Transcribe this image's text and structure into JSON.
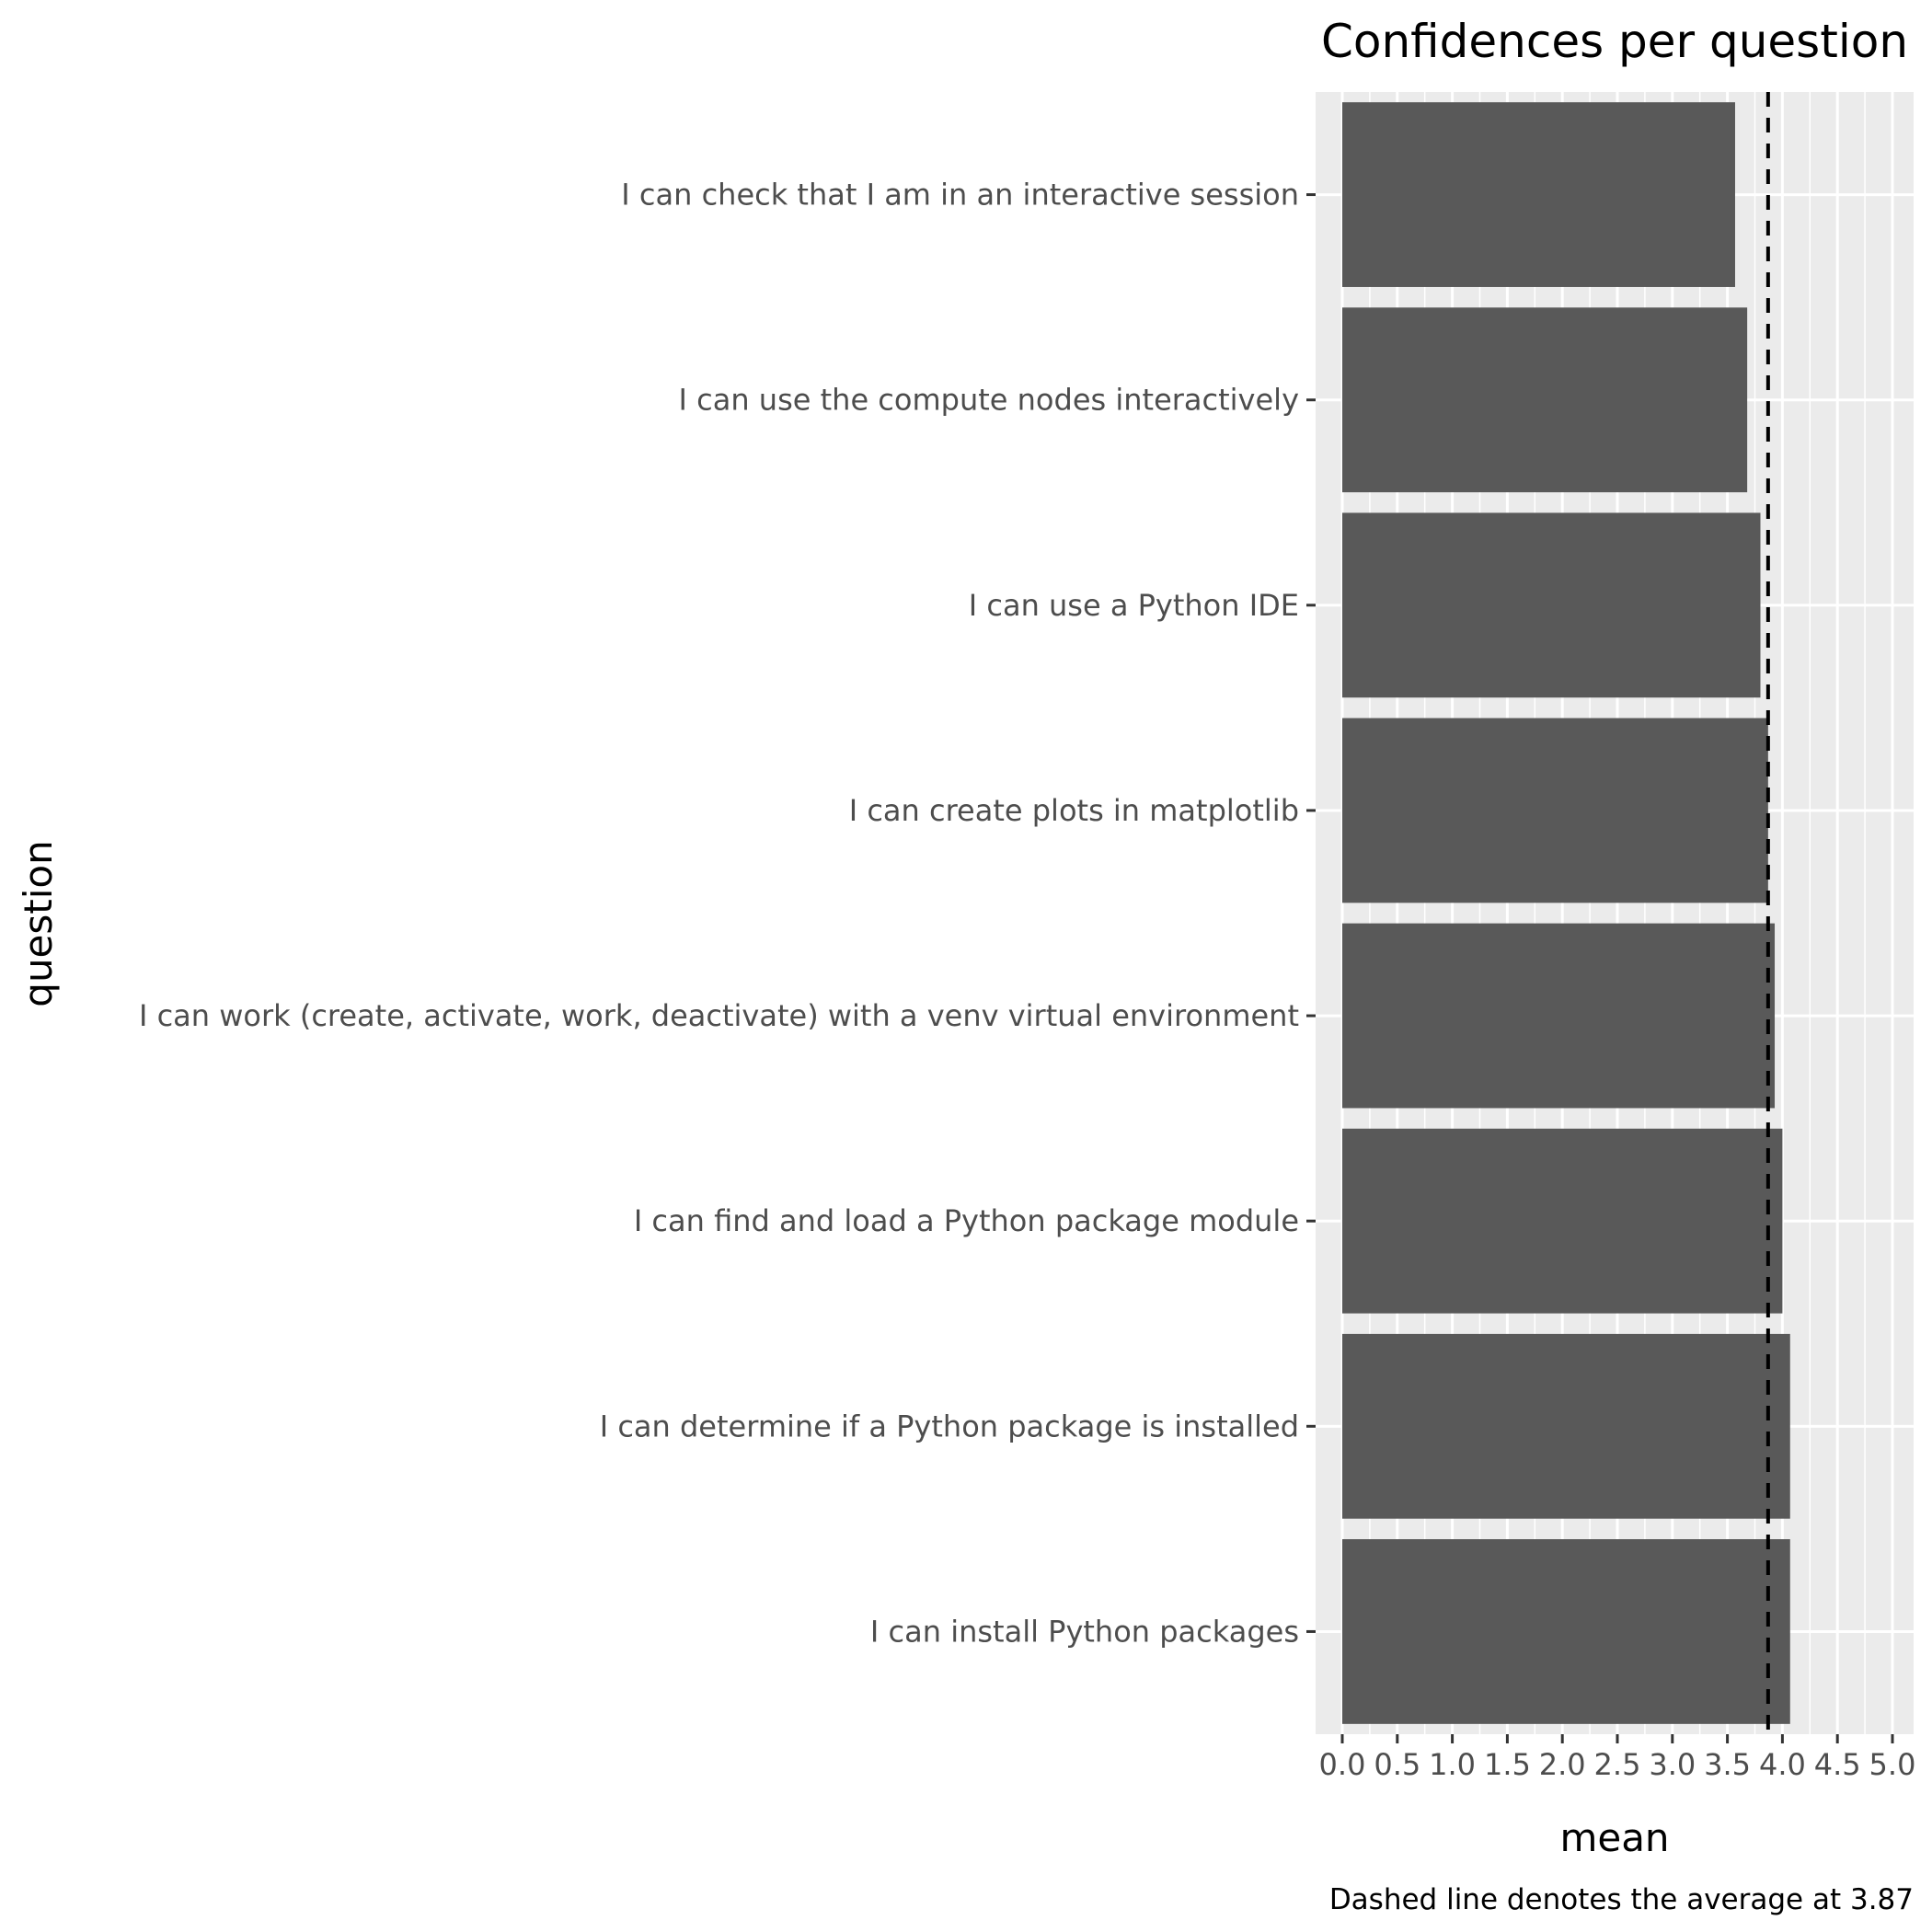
{
  "chart_data": {
    "type": "bar",
    "orientation": "horizontal",
    "title": "Confidences per question",
    "xlabel": "mean",
    "ylabel": "question",
    "caption": "Dashed line denotes the average at 3.87",
    "xlim": [
      0,
      5
    ],
    "xticks": [
      "0.0",
      "0.5",
      "1.0",
      "1.5",
      "2.0",
      "2.5",
      "3.0",
      "3.5",
      "4.0",
      "4.5",
      "5.0"
    ],
    "grid": true,
    "legend": "none",
    "average_line": 3.87,
    "bar_color": "#595959",
    "panel_color": "#ebebeb",
    "categories": [
      "I can check that I am in an interactive session",
      "I can use the compute nodes interactively",
      "I can use a Python IDE",
      "I can create plots in matplotlib",
      "I can work (create, activate, work, deactivate) with a venv virtual environment",
      "I can find and load a Python package module",
      "I can determine if a Python package is installed",
      "I can install Python packages"
    ],
    "values": [
      3.57,
      3.68,
      3.8,
      3.87,
      3.93,
      4.0,
      4.07,
      4.07
    ]
  }
}
